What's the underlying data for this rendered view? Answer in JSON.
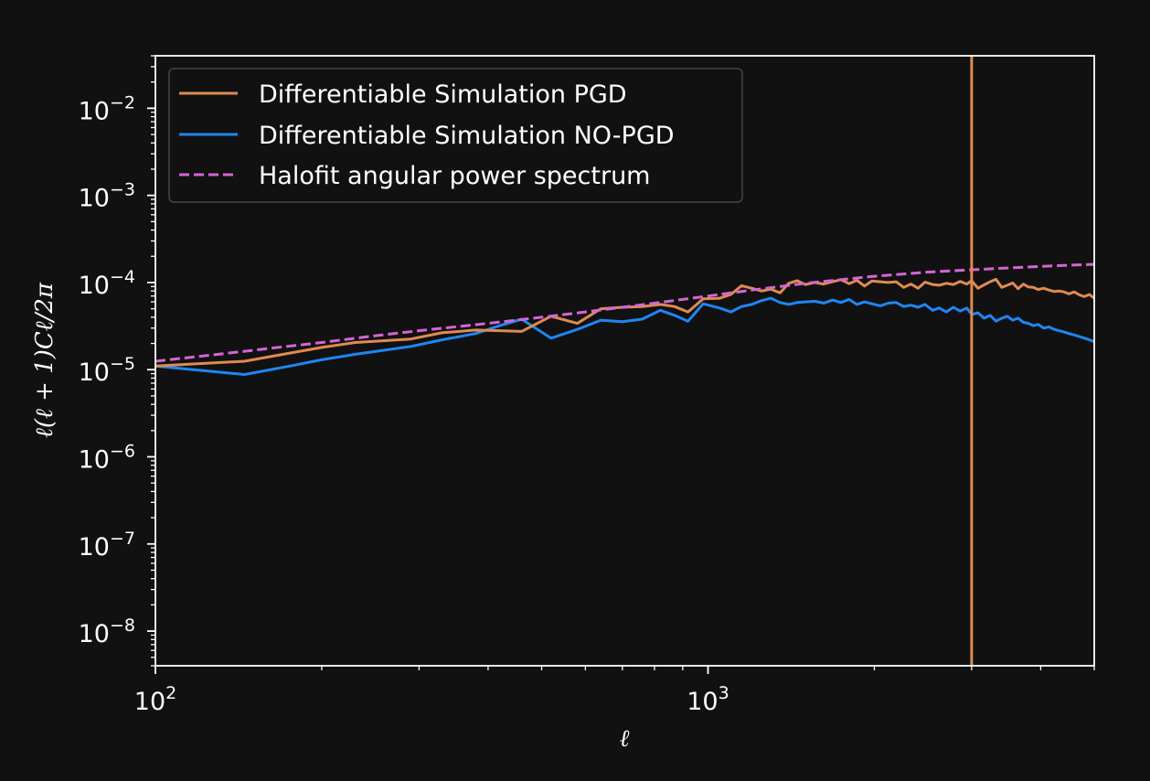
{
  "chart_data": {
    "type": "line",
    "title": "",
    "xlabel": "ℓ",
    "ylabel": "ℓ(ℓ + 1)Cℓ/2π",
    "xscale": "log",
    "yscale": "log",
    "xlim": [
      100,
      5000
    ],
    "ylim": [
      4e-09,
      0.04
    ],
    "grid": false,
    "legend_position": "top-left",
    "x_ticks": [
      {
        "base": "10",
        "exp": "2",
        "value": 100
      },
      {
        "base": "10",
        "exp": "3",
        "value": 1000
      }
    ],
    "y_ticks": [
      {
        "base": "10",
        "exp": "−2",
        "value": 0.01
      },
      {
        "base": "10",
        "exp": "−3",
        "value": 0.001
      },
      {
        "base": "10",
        "exp": "−4",
        "value": 0.0001
      },
      {
        "base": "10",
        "exp": "−5",
        "value": 1e-05
      },
      {
        "base": "10",
        "exp": "−6",
        "value": 1e-06
      },
      {
        "base": "10",
        "exp": "−7",
        "value": 1e-07
      },
      {
        "base": "10",
        "exp": "−8",
        "value": 1e-08
      }
    ],
    "vline": {
      "x": 3000,
      "color": "#e08a52"
    },
    "series": [
      {
        "name": "Differentiable Simulation PGD",
        "color": "#e08a52",
        "style": "solid",
        "x": [
          100,
          145,
          175,
          200,
          230,
          290,
          330,
          380,
          420,
          460,
          520,
          580,
          640,
          700,
          760,
          820,
          870,
          920,
          980,
          1050,
          1100,
          1150,
          1200,
          1250,
          1300,
          1350,
          1400,
          1450,
          1500,
          1560,
          1620,
          1680,
          1740,
          1800,
          1860,
          1920,
          1980,
          2050,
          2120,
          2190,
          2260,
          2330,
          2400,
          2470,
          2550,
          2620,
          2700,
          2780,
          2860,
          2940,
          3000,
          3080,
          3160,
          3240,
          3320,
          3400,
          3480,
          3560,
          3640,
          3720,
          3800,
          3880,
          3960,
          4050,
          4140,
          4230,
          4320,
          4410,
          4500,
          4600,
          4700,
          4800,
          4900,
          5000
        ],
        "y": [
          1.1e-05,
          1.25e-05,
          1.55e-05,
          1.8e-05,
          2.05e-05,
          2.25e-05,
          2.65e-05,
          2.85e-05,
          2.8e-05,
          2.75e-05,
          4.1e-05,
          3.4e-05,
          5e-05,
          5.2e-05,
          5.3e-05,
          5.6e-05,
          5.3e-05,
          4.6e-05,
          6.5e-05,
          6.6e-05,
          7.3e-05,
          9.2e-05,
          8.6e-05,
          8e-05,
          8.4e-05,
          7.6e-05,
          9.8e-05,
          0.000105,
          9.5e-05,
          0.0001,
          9.6e-05,
          0.000102,
          0.000108,
          9.7e-05,
          0.000106,
          9.1e-05,
          0.000104,
          0.000102,
          0.0001,
          0.000102,
          8.8e-05,
          9.6e-05,
          8.6e-05,
          0.000101,
          9.5e-05,
          9.3e-05,
          9.8e-05,
          9.5e-05,
          0.000103,
          9.6e-05,
          0.000105,
          8.6e-05,
          9.4e-05,
          0.000102,
          0.000109,
          8.8e-05,
          9.3e-05,
          9.9e-05,
          8.5e-05,
          9.6e-05,
          8.9e-05,
          8.8e-05,
          8.3e-05,
          8.6e-05,
          8.2e-05,
          7.9e-05,
          8e-05,
          7.8e-05,
          7.4e-05,
          7.8e-05,
          7.2e-05,
          6.9e-05,
          7.3e-05,
          6.6e-05
        ]
      },
      {
        "name": "Differentiable Simulation NO-PGD",
        "color": "#1f86f2",
        "style": "solid",
        "x": [
          100,
          145,
          175,
          200,
          230,
          290,
          330,
          380,
          420,
          460,
          520,
          580,
          640,
          700,
          760,
          820,
          870,
          920,
          980,
          1050,
          1100,
          1150,
          1200,
          1250,
          1300,
          1350,
          1400,
          1450,
          1500,
          1560,
          1620,
          1680,
          1740,
          1800,
          1860,
          1920,
          1980,
          2050,
          2120,
          2190,
          2260,
          2330,
          2400,
          2470,
          2550,
          2620,
          2700,
          2780,
          2860,
          2940,
          3000,
          3080,
          3160,
          3240,
          3320,
          3400,
          3480,
          3560,
          3640,
          3720,
          3800,
          3880,
          3960,
          4050,
          4140,
          4230,
          4320,
          4410,
          4500,
          4600,
          4700,
          4800,
          4900,
          5000
        ],
        "y": [
          1.1e-05,
          8.8e-06,
          1.1e-05,
          1.3e-05,
          1.5e-05,
          1.85e-05,
          2.2e-05,
          2.6e-05,
          3.2e-05,
          3.8e-05,
          2.3e-05,
          2.9e-05,
          3.7e-05,
          3.55e-05,
          3.8e-05,
          4.8e-05,
          4.2e-05,
          3.6e-05,
          5.7e-05,
          5.1e-05,
          4.6e-05,
          5.3e-05,
          5.6e-05,
          6.2e-05,
          6.6e-05,
          5.9e-05,
          5.6e-05,
          5.9e-05,
          6e-05,
          6.1e-05,
          5.8e-05,
          6.3e-05,
          5.9e-05,
          6.4e-05,
          5.6e-05,
          6e-05,
          5.7e-05,
          5.4e-05,
          5.8e-05,
          5.9e-05,
          5.3e-05,
          5.5e-05,
          5.2e-05,
          5.6e-05,
          4.8e-05,
          5.1e-05,
          4.6e-05,
          5.2e-05,
          4.7e-05,
          5.1e-05,
          4.3e-05,
          4.5e-05,
          3.9e-05,
          4.2e-05,
          3.6e-05,
          3.9e-05,
          4.1e-05,
          3.7e-05,
          3.9e-05,
          3.5e-05,
          3.4e-05,
          3.2e-05,
          3.3e-05,
          3e-05,
          3.1e-05,
          2.9e-05,
          2.8e-05,
          2.7e-05,
          2.6e-05,
          2.5e-05,
          2.4e-05,
          2.3e-05,
          2.2e-05,
          2.1e-05
        ]
      },
      {
        "name": "Halofit angular power spectrum",
        "color": "#d565d5",
        "style": "dashed",
        "x": [
          100,
          130,
          160,
          200,
          250,
          300,
          400,
          500,
          600,
          800,
          1000,
          1200,
          1500,
          2000,
          2500,
          3000,
          3500,
          4000,
          4500,
          5000
        ],
        "y": [
          1.25e-05,
          1.5e-05,
          1.75e-05,
          2.05e-05,
          2.45e-05,
          2.8e-05,
          3.4e-05,
          4e-05,
          4.6e-05,
          5.8e-05,
          7e-05,
          8.2e-05,
          9.8e-05,
          0.000118,
          0.000132,
          0.00014,
          0.000147,
          0.000153,
          0.000158,
          0.000162
        ]
      }
    ]
  }
}
